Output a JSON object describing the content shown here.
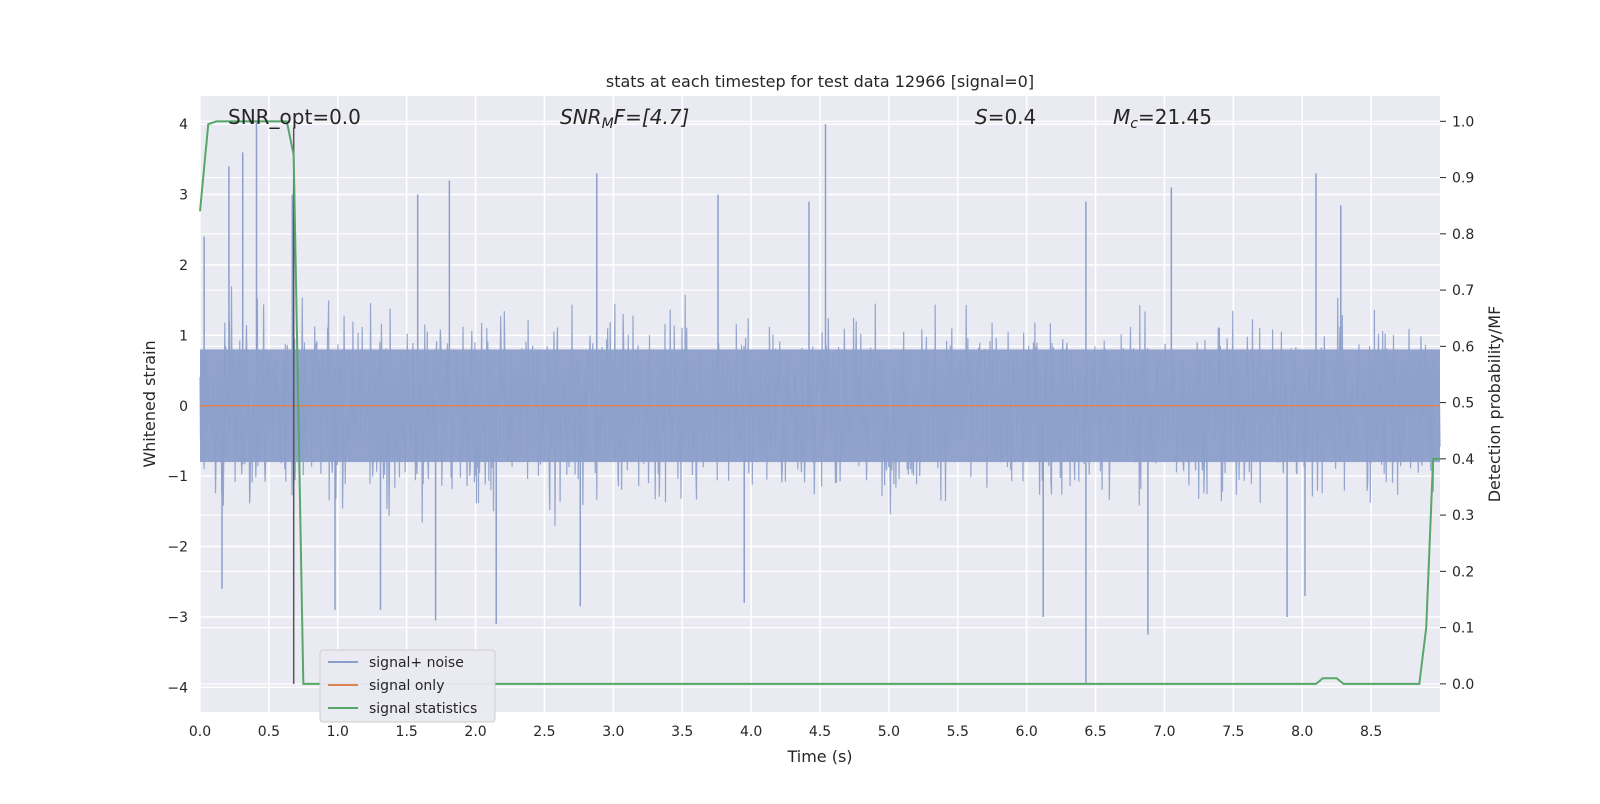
{
  "chart_data": {
    "type": "line",
    "title": "stats at each timestep for test data 12966 [signal=0]",
    "xlabel": "Time (s)",
    "ylabel": "Whitened strain",
    "y2label": "Detection probability/MF",
    "xlim": [
      0.0,
      9.0
    ],
    "ylim": [
      -4.35,
      4.4
    ],
    "y2lim": [
      -0.05,
      1.045
    ],
    "xticks": [
      "0.0",
      "0.5",
      "1.0",
      "1.5",
      "2.0",
      "2.5",
      "3.0",
      "3.5",
      "4.0",
      "4.5",
      "5.0",
      "5.5",
      "6.0",
      "6.5",
      "7.0",
      "7.5",
      "8.0",
      "8.5"
    ],
    "yticks": [
      -4,
      -3,
      -2,
      -1,
      0,
      1,
      2,
      3,
      4
    ],
    "y2ticks": [
      "0.0",
      "0.1",
      "0.2",
      "0.3",
      "0.4",
      "0.5",
      "0.6",
      "0.7",
      "0.8",
      "0.9",
      "1.0"
    ],
    "grid": true,
    "legend_position": "lower-left",
    "colors": {
      "background": "#eaeaf2",
      "grid": "#ffffff",
      "noise": "#8c9fca",
      "signal": "#dd8452",
      "statistics": "#55a868",
      "marker": "#555555"
    },
    "annotations": {
      "snr_opt": "SNR_opt=0.0",
      "snr_mf_main": "SNR",
      "snr_mf_sub": "M",
      "snr_mf_rest": "F=[4.7]",
      "s_main": "S",
      "s_rest": "=0.4",
      "mc_main": "M",
      "mc_sub": "c",
      "mc_rest": "=21.45"
    },
    "marker_line_x": 0.68,
    "series": [
      {
        "name": "signal+ noise",
        "description_values": "whitened noise strain, roughly gaussian with amplitude about +-1.6 and spikes",
        "spikes": [
          {
            "x": 0.03,
            "y": 2.4
          },
          {
            "x": 0.16,
            "y": -2.6
          },
          {
            "x": 0.21,
            "y": 3.4
          },
          {
            "x": 0.31,
            "y": 3.6
          },
          {
            "x": 0.41,
            "y": 4.05
          },
          {
            "x": 0.67,
            "y": 3.0
          },
          {
            "x": 0.98,
            "y": -2.9
          },
          {
            "x": 1.31,
            "y": -2.9
          },
          {
            "x": 1.58,
            "y": 3.0
          },
          {
            "x": 1.71,
            "y": -3.05
          },
          {
            "x": 1.81,
            "y": 3.2
          },
          {
            "x": 2.15,
            "y": -3.1
          },
          {
            "x": 2.88,
            "y": 3.3
          },
          {
            "x": 2.76,
            "y": -2.85
          },
          {
            "x": 3.76,
            "y": 3.0
          },
          {
            "x": 3.95,
            "y": -2.8
          },
          {
            "x": 4.54,
            "y": 4.0
          },
          {
            "x": 4.42,
            "y": 2.9
          },
          {
            "x": 6.12,
            "y": -3.0
          },
          {
            "x": 6.43,
            "y": -3.95
          },
          {
            "x": 6.43,
            "y": 2.9
          },
          {
            "x": 6.88,
            "y": -3.25
          },
          {
            "x": 7.05,
            "y": 3.1
          },
          {
            "x": 8.1,
            "y": 3.3
          },
          {
            "x": 7.89,
            "y": -3.0
          },
          {
            "x": 8.28,
            "y": 2.85
          },
          {
            "x": 8.02,
            "y": -2.7
          }
        ]
      },
      {
        "name": "signal only",
        "x": [
          0.0,
          9.0
        ],
        "y": [
          0.0,
          0.0
        ]
      },
      {
        "name": "signal statistics",
        "axis": "right",
        "x": [
          0.0,
          0.06,
          0.12,
          0.3,
          0.5,
          0.63,
          0.68,
          0.75,
          1.0,
          3.0,
          5.0,
          7.0,
          8.1,
          8.15,
          8.2,
          8.25,
          8.3,
          8.5,
          8.85,
          8.9,
          8.95,
          9.0
        ],
        "y": [
          0.84,
          0.995,
          1.0,
          1.0,
          1.0,
          1.0,
          0.94,
          0.0,
          0.0,
          0.0,
          0.0,
          0.0,
          0.0,
          0.01,
          0.01,
          0.01,
          0.0,
          0.0,
          0.0,
          0.1,
          0.4,
          0.4
        ]
      }
    ]
  }
}
